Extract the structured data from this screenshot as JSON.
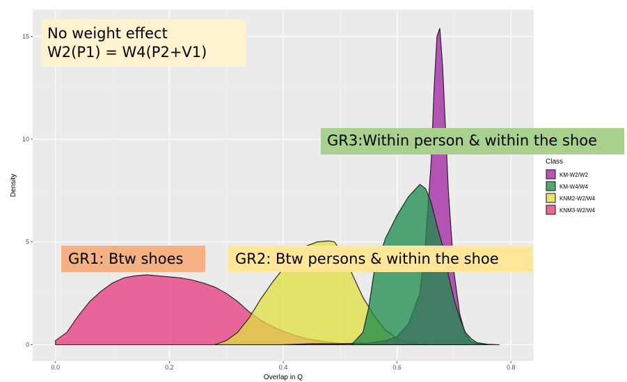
{
  "chart_data": {
    "type": "area",
    "subtype": "density",
    "xlabel": "Overlap in Q",
    "ylabel": "Density",
    "xlim": [
      -0.04,
      0.84
    ],
    "ylim": [
      -0.8,
      16.3
    ],
    "x_ticks": [
      0.0,
      0.2,
      0.4,
      0.6,
      0.8
    ],
    "x_tick_labels": [
      "0.0",
      "0.2",
      "0.4",
      "0.6",
      "0.8"
    ],
    "y_ticks": [
      0,
      5,
      10,
      15
    ],
    "y_tick_labels": [
      "0",
      "5",
      "10",
      "15"
    ],
    "grid": true,
    "background": "#ebebeb",
    "legend": {
      "title": "Class",
      "placement": "right"
    },
    "series": [
      {
        "name": "KM-W2/W2",
        "color": "#a020a0",
        "x": [
          0.4,
          0.45,
          0.5,
          0.55,
          0.58,
          0.6,
          0.62,
          0.64,
          0.65,
          0.66,
          0.665,
          0.67,
          0.675,
          0.68,
          0.685,
          0.69,
          0.7,
          0.71,
          0.72,
          0.73,
          0.74,
          0.75,
          0.76
        ],
        "values": [
          0.0,
          0.05,
          0.05,
          0.08,
          0.2,
          0.4,
          1.0,
          2.5,
          5.0,
          9.0,
          12.5,
          15.0,
          15.4,
          13.5,
          10.5,
          7.5,
          3.5,
          1.5,
          0.5,
          0.15,
          0.05,
          0.02,
          0.0
        ]
      },
      {
        "name": "KM-W4/W4",
        "color": "#1b8a4a",
        "x": [
          0.52,
          0.54,
          0.55,
          0.56,
          0.58,
          0.6,
          0.62,
          0.64,
          0.65,
          0.66,
          0.67,
          0.68,
          0.69,
          0.7,
          0.71,
          0.72,
          0.73,
          0.74,
          0.76,
          0.78
        ],
        "values": [
          0.0,
          0.6,
          1.8,
          3.6,
          5.2,
          6.3,
          7.2,
          7.8,
          7.6,
          6.9,
          5.8,
          4.8,
          3.4,
          2.2,
          1.3,
          0.6,
          0.3,
          0.1,
          0.02,
          0.0
        ]
      },
      {
        "name": "KNM2-W2/W4",
        "color": "#e0e040",
        "x": [
          0.28,
          0.3,
          0.32,
          0.34,
          0.36,
          0.38,
          0.4,
          0.42,
          0.44,
          0.46,
          0.48,
          0.49,
          0.5,
          0.52,
          0.54,
          0.56,
          0.58,
          0.6,
          0.62,
          0.64,
          0.66
        ],
        "values": [
          0.0,
          0.2,
          0.6,
          1.3,
          2.2,
          3.0,
          3.7,
          4.3,
          4.8,
          5.0,
          5.05,
          5.0,
          4.6,
          3.5,
          2.3,
          1.4,
          0.7,
          0.3,
          0.1,
          0.02,
          0.0
        ]
      },
      {
        "name": "KNM3-W2/W4",
        "color": "#e7387e",
        "x": [
          0.0,
          0.02,
          0.04,
          0.06,
          0.08,
          0.1,
          0.12,
          0.14,
          0.16,
          0.18,
          0.2,
          0.22,
          0.24,
          0.26,
          0.28,
          0.3,
          0.32,
          0.34,
          0.36,
          0.38,
          0.4,
          0.42,
          0.44,
          0.46,
          0.48,
          0.5,
          0.55,
          0.6
        ],
        "values": [
          0.2,
          0.6,
          1.4,
          2.1,
          2.6,
          3.0,
          3.25,
          3.35,
          3.4,
          3.35,
          3.3,
          3.25,
          3.15,
          3.0,
          2.8,
          2.5,
          2.1,
          1.6,
          1.2,
          0.9,
          0.65,
          0.45,
          0.3,
          0.2,
          0.12,
          0.06,
          0.02,
          0.0
        ]
      }
    ],
    "annotations": [
      {
        "id": "noweight",
        "text": "No weight effect\nW2(P1) = W4(P2+V1)",
        "color": "#fff3cf"
      },
      {
        "id": "gr3",
        "text": "GR3:Within person & within the shoe",
        "color": "#a9d18e"
      },
      {
        "id": "gr1",
        "text": "GR1: Btw shoes",
        "color": "#f4b183"
      },
      {
        "id": "gr2",
        "text": "GR2: Btw persons & within the shoe",
        "color": "#ffe699"
      }
    ]
  }
}
